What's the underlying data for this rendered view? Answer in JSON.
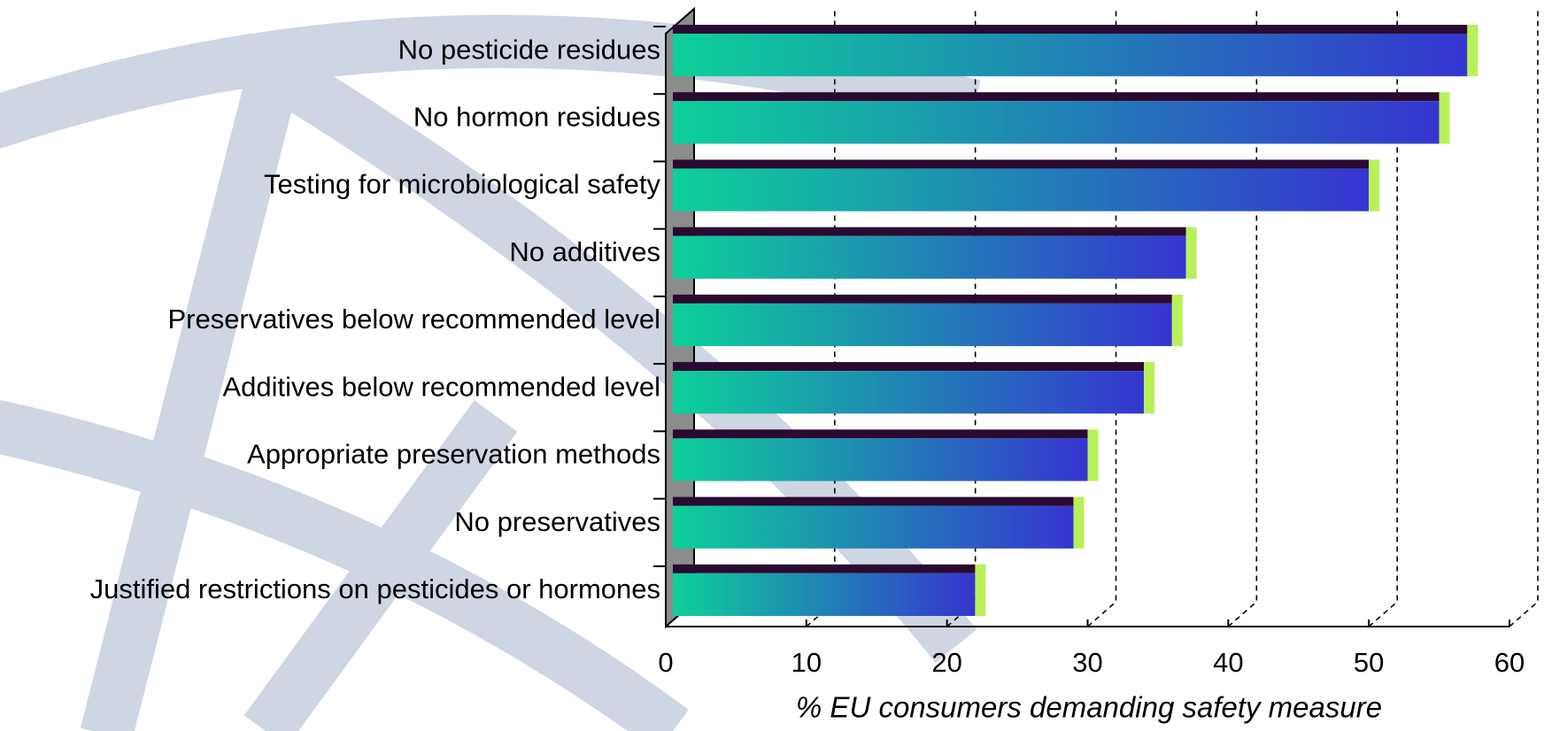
{
  "chart_data": {
    "type": "bar",
    "orientation": "horizontal",
    "x_label": "% EU consumers demanding safety measure",
    "categories": [
      "No pesticide residues",
      "No hormon residues",
      "Testing for microbiological safety",
      "No additives",
      "Preservatives below recommended level",
      "Additives below recommended level",
      "Appropriate preservation methods",
      "No preservatives",
      "Justified restrictions on pesticides or hormones"
    ],
    "values": [
      57,
      55,
      50,
      37,
      36,
      34,
      30,
      29,
      22
    ],
    "gradient": [
      "#0dd09a",
      "#3535d0"
    ],
    "xlim": [
      0,
      60
    ],
    "xticks": [
      0,
      10,
      20,
      30,
      40,
      50,
      60
    ],
    "grid": true
  }
}
